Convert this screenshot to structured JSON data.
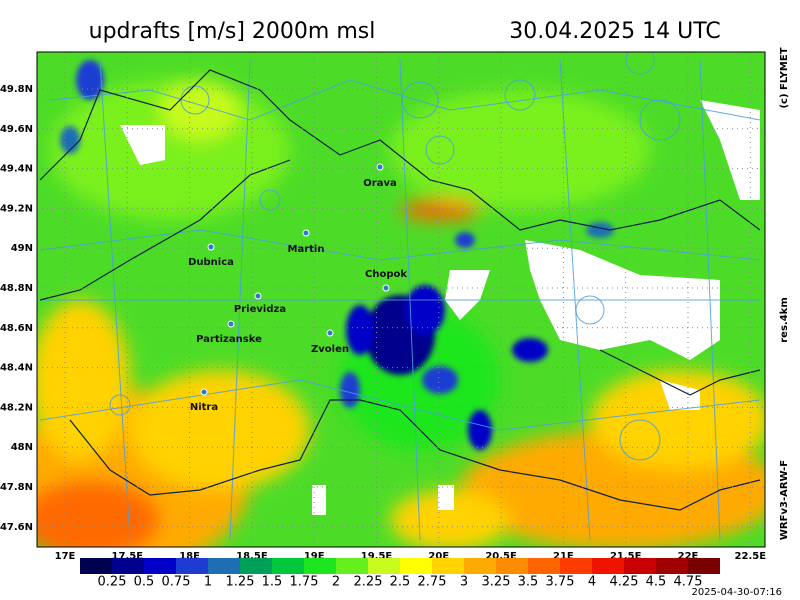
{
  "header": {
    "title": "updrafts [m/s] 2000m msl",
    "valid": "30.04.2025 14 UTC"
  },
  "side": {
    "copyright": "(c) FLYMET",
    "resolution": "res.4km",
    "model": "WRFv3-ARW-F"
  },
  "axes": {
    "lat": [
      "49.8N",
      "49.6N",
      "49.4N",
      "49.2N",
      "49N",
      "48.8N",
      "48.6N",
      "48.4N",
      "48.2N",
      "48N",
      "47.8N",
      "47.6N"
    ],
    "lon": [
      "17E",
      "17.5E",
      "18E",
      "18.5E",
      "19E",
      "19.5E",
      "20E",
      "20.5E",
      "21E",
      "21.5E",
      "22E",
      "22.5E"
    ]
  },
  "places": [
    "Orava",
    "Martin",
    "Dubnica",
    "Chopok",
    "Prievidza",
    "Partizanske",
    "Zvolen",
    "Nitra"
  ],
  "colorbar": {
    "labels": [
      "0.25",
      "0.5",
      "0.75",
      "1",
      "1.25",
      "1.5",
      "1.75",
      "2",
      "2.25",
      "2.5",
      "2.75",
      "3",
      "3.25",
      "3.5",
      "3.75",
      "4",
      "4.25",
      "4.5",
      "4.75"
    ],
    "colors": [
      "#000050",
      "#00008c",
      "#0000c8",
      "#1e3cd2",
      "#1e6eb4",
      "#00a05a",
      "#00c83c",
      "#1ee61e",
      "#64f01e",
      "#c8fa1e",
      "#ffff00",
      "#ffd200",
      "#ffaa00",
      "#ff8c00",
      "#ff6400",
      "#ff3c00",
      "#f01400",
      "#c80000",
      "#a00000",
      "#780000"
    ]
  },
  "timestamp": "2025-04-30-07:16"
}
